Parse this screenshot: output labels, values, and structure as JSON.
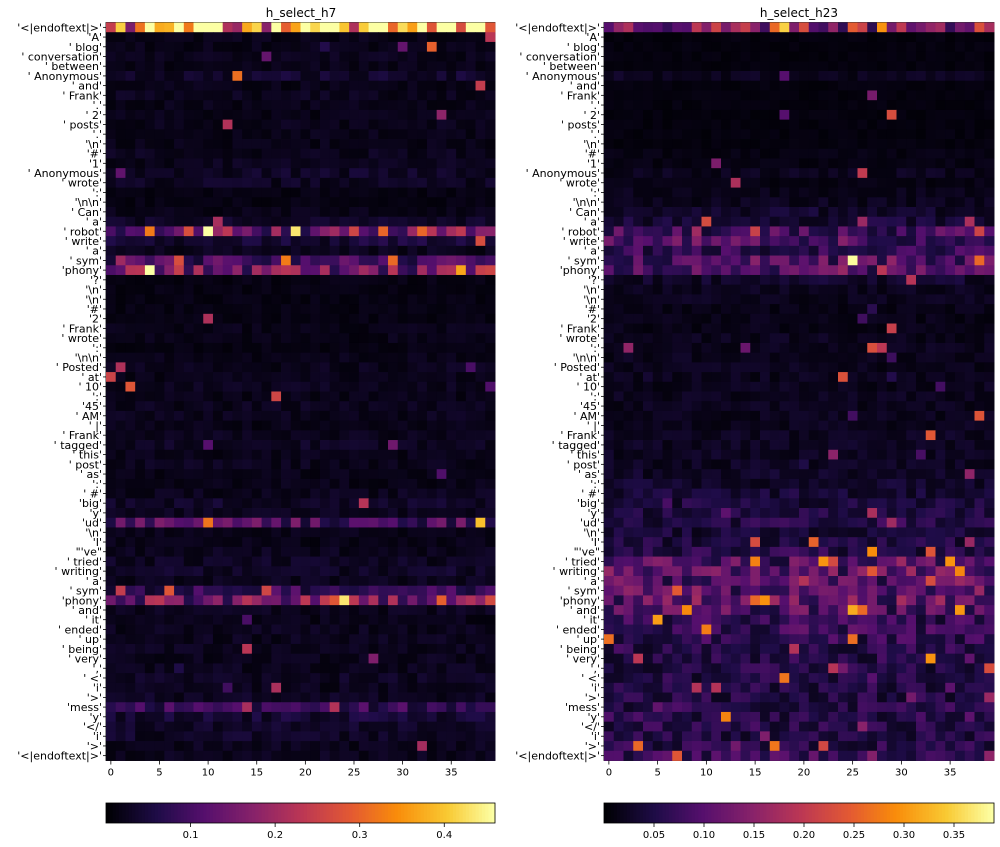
{
  "chart_data": [
    {
      "type": "heatmap",
      "title": "h_select_h7",
      "colormap": "inferno",
      "columns": 40,
      "x_ticks": [
        0,
        5,
        10,
        15,
        20,
        25,
        30,
        35
      ],
      "colorbar_ticks": [
        "0.1",
        "0.2",
        "0.3",
        "0.4"
      ],
      "value_range": [
        0.0,
        0.46
      ],
      "row_labels": [
        "'<|endoftext|>'",
        "'A'",
        "' blog'",
        "' conversation'",
        "' between'",
        "' Anonymous'",
        "' and'",
        "' Frank'",
        "'.'",
        "' 2'",
        "' posts'",
        "'.'",
        "'\\n'",
        "'#'",
        "'1'",
        "' Anonymous'",
        "' wrote'",
        "':'",
        "'\\n\\n'",
        "' Can'",
        "' a'",
        "' robot'",
        "' write'",
        "' a'",
        "' sym'",
        "'phony'",
        "'?'",
        "'\\n'",
        "'\\n'",
        "'#'",
        "'2'",
        "' Frank'",
        "' wrote'",
        "':'",
        "'\\n\\n'",
        "' Posted'",
        "' at'",
        "' 10'",
        "':'",
        "'45'",
        "' AM'",
        "' |'",
        "' Frank'",
        "' tagged'",
        "' this'",
        "' post'",
        "' as'",
        "':'",
        "' #'",
        "'big'",
        "'y'",
        "'ud'",
        "'\\n'",
        "'I'",
        "\"'ve\"",
        "' tried'",
        "' writing'",
        "' a'",
        "' sym'",
        "'phony'",
        "' and'",
        "' it'",
        "' ended'",
        "' up'",
        "' being'",
        "' very'",
        "','",
        "' <'",
        "'i'",
        "'>'",
        "'mess'",
        "'y'",
        "'</'",
        "'i'",
        "'>'",
        "'<|endoftext|>'"
      ],
      "row_intensity": [
        0.85,
        0.04,
        0.04,
        0.05,
        0.04,
        0.08,
        0.04,
        0.05,
        0.04,
        0.04,
        0.05,
        0.04,
        0.04,
        0.05,
        0.05,
        0.07,
        0.06,
        0.03,
        0.03,
        0.04,
        0.07,
        0.35,
        0.1,
        0.05,
        0.22,
        0.38,
        0.03,
        0.03,
        0.03,
        0.03,
        0.03,
        0.04,
        0.04,
        0.03,
        0.04,
        0.05,
        0.04,
        0.05,
        0.04,
        0.05,
        0.05,
        0.04,
        0.05,
        0.06,
        0.04,
        0.05,
        0.04,
        0.04,
        0.05,
        0.07,
        0.05,
        0.25,
        0.04,
        0.04,
        0.05,
        0.06,
        0.07,
        0.05,
        0.18,
        0.35,
        0.05,
        0.04,
        0.05,
        0.05,
        0.05,
        0.05,
        0.05,
        0.06,
        0.05,
        0.06,
        0.18,
        0.1,
        0.07,
        0.07,
        0.05,
        0.05
      ]
    },
    {
      "type": "heatmap",
      "title": "h_select_h23",
      "colormap": "inferno",
      "columns": 40,
      "x_ticks": [
        0,
        5,
        10,
        15,
        20,
        25,
        30,
        35
      ],
      "colorbar_ticks": [
        "0.05",
        "0.10",
        "0.15",
        "0.20",
        "0.25",
        "0.30",
        "0.35"
      ],
      "value_range": [
        0.0,
        0.39
      ],
      "row_labels": [
        "'<|endoftext|>'",
        "'A'",
        "' blog'",
        "' conversation'",
        "' between'",
        "' Anonymous'",
        "' and'",
        "' Frank'",
        "'.'",
        "' 2'",
        "' posts'",
        "'.'",
        "'\\n'",
        "'#'",
        "'1'",
        "' Anonymous'",
        "' wrote'",
        "':'",
        "'\\n\\n'",
        "' Can'",
        "' a'",
        "' robot'",
        "' write'",
        "' a'",
        "' sym'",
        "'phony'",
        "'?'",
        "'\\n'",
        "'\\n'",
        "'#'",
        "'2'",
        "' Frank'",
        "' wrote'",
        "':'",
        "'\\n\\n'",
        "' Posted'",
        "' at'",
        "' 10'",
        "':'",
        "'45'",
        "' AM'",
        "' |'",
        "' Frank'",
        "' tagged'",
        "' this'",
        "' post'",
        "' as'",
        "':'",
        "' #'",
        "'big'",
        "'y'",
        "'ud'",
        "'\\n'",
        "'I'",
        "\"'ve\"",
        "' tried'",
        "' writing'",
        "' a'",
        "' sym'",
        "'phony'",
        "' and'",
        "' it'",
        "' ended'",
        "' up'",
        "' being'",
        "' very'",
        "','",
        "' <'",
        "'i'",
        "'>'",
        "'mess'",
        "'y'",
        "'</'",
        "'i'",
        "'>'",
        "'<|endoftext|>'"
      ],
      "row_intensity": [
        0.4,
        0.02,
        0.02,
        0.02,
        0.02,
        0.05,
        0.02,
        0.02,
        0.02,
        0.02,
        0.02,
        0.02,
        0.02,
        0.03,
        0.03,
        0.05,
        0.03,
        0.04,
        0.05,
        0.08,
        0.1,
        0.22,
        0.25,
        0.18,
        0.28,
        0.25,
        0.08,
        0.05,
        0.05,
        0.04,
        0.04,
        0.04,
        0.05,
        0.05,
        0.05,
        0.05,
        0.05,
        0.05,
        0.05,
        0.05,
        0.05,
        0.05,
        0.06,
        0.06,
        0.06,
        0.06,
        0.07,
        0.08,
        0.1,
        0.12,
        0.12,
        0.15,
        0.1,
        0.12,
        0.15,
        0.25,
        0.28,
        0.25,
        0.28,
        0.3,
        0.25,
        0.18,
        0.2,
        0.18,
        0.15,
        0.15,
        0.14,
        0.14,
        0.14,
        0.14,
        0.16,
        0.16,
        0.15,
        0.14,
        0.15,
        0.2
      ]
    }
  ]
}
